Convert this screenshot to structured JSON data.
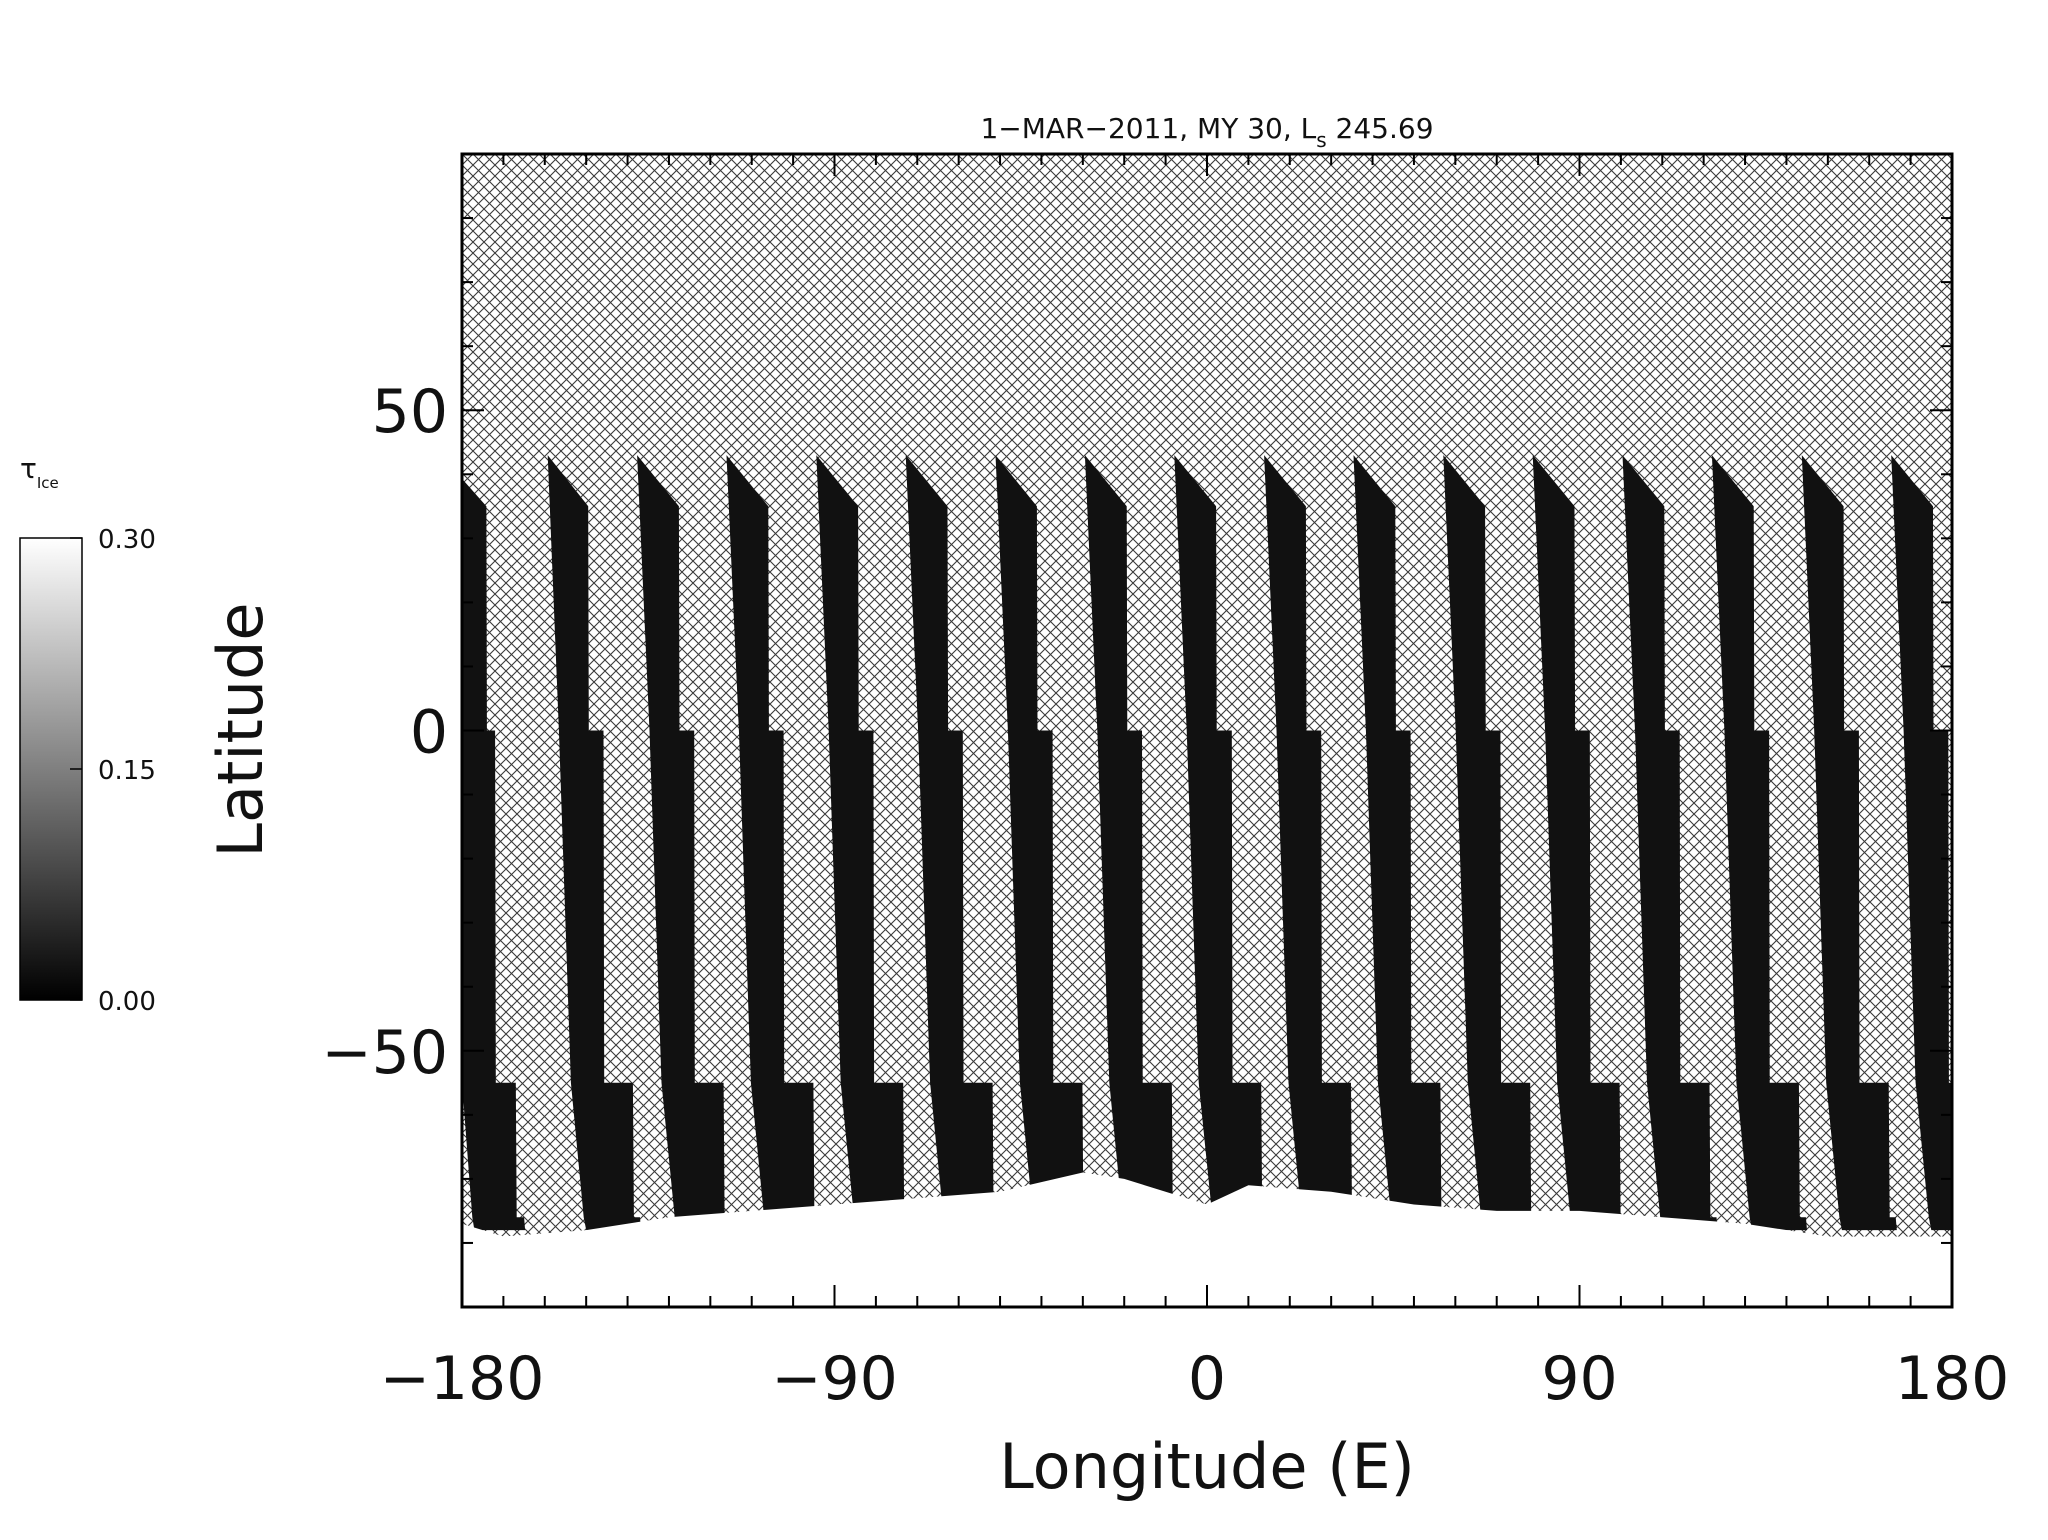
{
  "chart_data": {
    "type": "heatmap",
    "title": "1−MAR−2011, MY 30,  L",
    "title_subscript": "s",
    "title_suffix": " 245.69",
    "xlabel": "Longitude (E)",
    "ylabel": "Latitude",
    "xlim": [
      -180,
      180
    ],
    "ylim": [
      -90,
      90
    ],
    "xticks": [
      -180,
      -90,
      0,
      90,
      180
    ],
    "xtick_labels": [
      "−180",
      "−90",
      "0",
      "90",
      "180"
    ],
    "yticks": [
      -50,
      0,
      50
    ],
    "ytick_labels": [
      "−50",
      "0",
      "50"
    ],
    "x_minor_step": 10,
    "y_minor_step": 10,
    "missing_data": "cross-hatched",
    "colorbar": {
      "title": "τ",
      "title_subscript": "Ice",
      "min": 0.0,
      "max": 0.3,
      "ticks": [
        0.0,
        0.15,
        0.3
      ],
      "tick_labels": [
        "0.00",
        "0.15",
        "0.30"
      ],
      "color_low": "#000000",
      "color_high": "#ffffff"
    },
    "swath_value_typical": 0.02,
    "polar_cap_value": 0.3,
    "swaths": [
      {
        "top_lon": -180,
        "top_lat": 39.3,
        "lat_profile": [
          [
            35,
            0,
            -180.0,
            -174.1
          ],
          [
            0,
            -55,
            -180.0,
            -172.0
          ],
          [
            -55,
            -76,
            -177.5,
            -167.0
          ],
          [
            -76,
            -78,
            -177.0,
            -165.0
          ]
        ]
      },
      {
        "top_lon": -159.3,
        "top_lat": 43.0,
        "lat_profile": [
          [
            35,
            0,
            -156.6,
            -149.5
          ],
          [
            0,
            -55,
            -153.7,
            -145.8
          ],
          [
            -55,
            -76,
            -150.6,
            -138.7
          ],
          [
            -76,
            -78,
            -150.0,
            -137.0
          ]
        ]
      },
      {
        "top_lon": -137.7,
        "top_lat": 43.0,
        "lat_profile": [
          [
            35,
            0,
            -134.7,
            -127.6
          ],
          [
            0,
            -55,
            -131.8,
            -123.9
          ],
          [
            -55,
            -76,
            -128.6,
            -116.8
          ],
          [
            -76,
            -78,
            -128.0,
            -115.0
          ]
        ]
      },
      {
        "top_lon": -116.1,
        "top_lat": 43.0,
        "lat_profile": [
          [
            35,
            0,
            -113.1,
            -106.0
          ],
          [
            0,
            -55,
            -110.2,
            -102.3
          ],
          [
            -55,
            -76,
            -107.0,
            -95.1
          ],
          [
            -76,
            -78,
            -106.5,
            -93.5
          ]
        ]
      },
      {
        "top_lon": -94.4,
        "top_lat": 43.0,
        "lat_profile": [
          [
            35,
            0,
            -91.4,
            -84.3
          ],
          [
            0,
            -55,
            -88.5,
            -80.6
          ],
          [
            -55,
            -76,
            -85.3,
            -73.4
          ],
          [
            -76,
            -78,
            -84.8,
            -71.8
          ]
        ]
      },
      {
        "top_lon": -72.8,
        "top_lat": 43.0,
        "lat_profile": [
          [
            35,
            0,
            -69.8,
            -62.7
          ],
          [
            0,
            -55,
            -66.9,
            -59.0
          ],
          [
            -55,
            -76,
            -63.7,
            -51.8
          ],
          [
            -76,
            -78,
            -63.1,
            -50.1
          ]
        ]
      },
      {
        "top_lon": -51.1,
        "top_lat": 43.0,
        "lat_profile": [
          [
            35,
            0,
            -48.1,
            -41.1
          ],
          [
            0,
            -55,
            -45.2,
            -37.3
          ],
          [
            -55,
            -76,
            -42.0,
            -30.1
          ],
          [
            -76,
            -78,
            -41.4,
            -28.5
          ]
        ]
      },
      {
        "top_lon": -29.5,
        "top_lat": 43.0,
        "lat_profile": [
          [
            35,
            0,
            -26.5,
            -19.4
          ],
          [
            0,
            -55,
            -23.6,
            -15.7
          ],
          [
            -55,
            -76,
            -20.4,
            -8.5
          ],
          [
            -76,
            -78,
            -19.8,
            -6.8
          ]
        ]
      },
      {
        "top_lon": -7.9,
        "top_lat": 43.0,
        "lat_profile": [
          [
            35,
            0,
            -4.9,
            2.2
          ],
          [
            0,
            -55,
            -2.0,
            6.0
          ],
          [
            -55,
            -76,
            1.3,
            13.1
          ],
          [
            -76,
            -78,
            1.8,
            14.8
          ]
        ]
      },
      {
        "top_lon": 13.8,
        "top_lat": 43.0,
        "lat_profile": [
          [
            35,
            0,
            16.8,
            23.9
          ],
          [
            0,
            -55,
            19.7,
            27.6
          ],
          [
            -55,
            -76,
            22.9,
            34.8
          ],
          [
            -76,
            -78,
            23.5,
            36.5
          ]
        ]
      },
      {
        "top_lon": 35.4,
        "top_lat": 43.0,
        "lat_profile": [
          [
            35,
            0,
            38.4,
            45.5
          ],
          [
            0,
            -55,
            41.3,
            49.2
          ],
          [
            -55,
            -76,
            44.5,
            56.4
          ],
          [
            -76,
            -78,
            45.1,
            58.1
          ]
        ]
      },
      {
        "top_lon": 57.1,
        "top_lat": 43.0,
        "lat_profile": [
          [
            35,
            0,
            60.1,
            67.2
          ],
          [
            0,
            -55,
            63.0,
            70.9
          ],
          [
            -55,
            -76,
            66.2,
            78.1
          ],
          [
            -76,
            -78,
            66.8,
            79.8
          ]
        ]
      },
      {
        "top_lon": 78.7,
        "top_lat": 43.0,
        "lat_profile": [
          [
            35,
            0,
            81.7,
            88.8
          ],
          [
            0,
            -55,
            84.6,
            92.5
          ],
          [
            -55,
            -76,
            87.8,
            99.7
          ],
          [
            -76,
            -78,
            88.4,
            101.4
          ]
        ]
      },
      {
        "top_lon": 100.4,
        "top_lat": 43.0,
        "lat_profile": [
          [
            35,
            0,
            103.4,
            110.5
          ],
          [
            0,
            -55,
            106.3,
            114.2
          ],
          [
            -55,
            -76,
            109.5,
            121.4
          ],
          [
            -76,
            -78,
            110.1,
            123.1
          ]
        ]
      },
      {
        "top_lon": 122.0,
        "top_lat": 43.0,
        "lat_profile": [
          [
            35,
            0,
            125.0,
            132.1
          ],
          [
            0,
            -55,
            127.9,
            135.8
          ],
          [
            -55,
            -76,
            131.1,
            143.0
          ],
          [
            -76,
            -78,
            131.7,
            144.7
          ]
        ]
      },
      {
        "top_lon": 143.7,
        "top_lat": 43.0,
        "lat_profile": [
          [
            35,
            0,
            146.7,
            153.8
          ],
          [
            0,
            -55,
            149.6,
            157.5
          ],
          [
            -55,
            -76,
            152.8,
            164.7
          ],
          [
            -76,
            -78,
            153.4,
            166.4
          ]
        ]
      },
      {
        "top_lon": 165.3,
        "top_lat": 43.0,
        "lat_profile": [
          [
            35,
            0,
            168.3,
            175.4
          ],
          [
            0,
            -55,
            171.2,
            179.1
          ],
          [
            -55,
            -76,
            174.4,
            180.0
          ],
          [
            -76,
            -78,
            175.0,
            180.0
          ]
        ]
      }
    ],
    "polar_cap_edge": [
      [
        -180,
        -77
      ],
      [
        -170,
        -79
      ],
      [
        -150,
        -78
      ],
      [
        -130,
        -76
      ],
      [
        -110,
        -75
      ],
      [
        -90,
        -74
      ],
      [
        -70,
        -73
      ],
      [
        -50,
        -72
      ],
      [
        -30,
        -69
      ],
      [
        -20,
        -70
      ],
      [
        -10,
        -72
      ],
      [
        0,
        -74
      ],
      [
        10,
        -71
      ],
      [
        30,
        -72
      ],
      [
        50,
        -74
      ],
      [
        70,
        -75
      ],
      [
        90,
        -75
      ],
      [
        110,
        -76
      ],
      [
        130,
        -77
      ],
      [
        150,
        -79
      ],
      [
        170,
        -79
      ],
      [
        180,
        -79
      ]
    ]
  }
}
